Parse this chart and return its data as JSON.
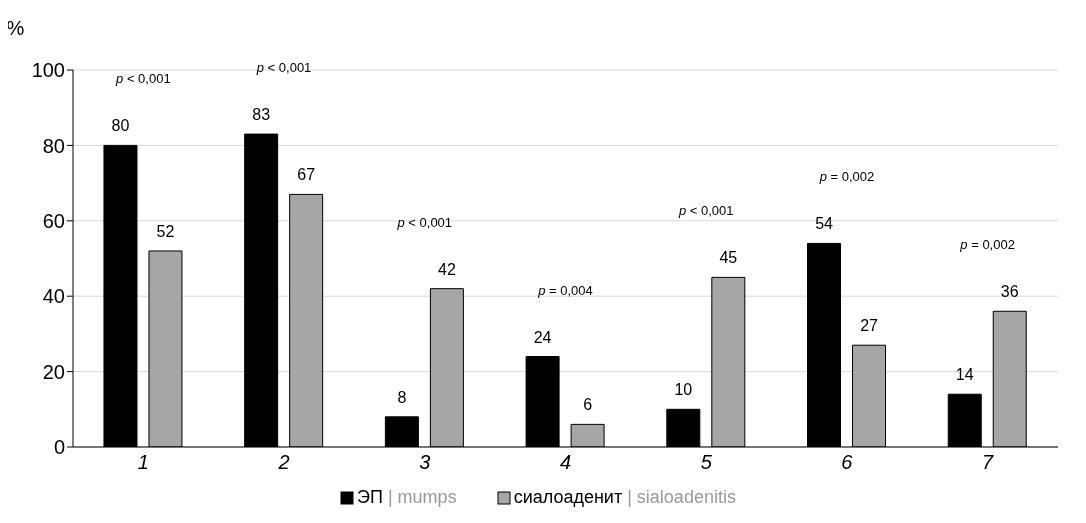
{
  "chart_data": {
    "type": "bar",
    "ylabel": "%",
    "categories": [
      "1",
      "2",
      "3",
      "4",
      "5",
      "6",
      "7"
    ],
    "series": [
      {
        "name": "ЭП | mumps",
        "color": "#000000",
        "values": [
          80,
          83,
          8,
          24,
          10,
          54,
          14
        ]
      },
      {
        "name": "сиалоаденит | sialoadenitis",
        "color": "#a6a6a6",
        "values": [
          52,
          67,
          42,
          6,
          45,
          27,
          36
        ]
      }
    ],
    "ylim": [
      0,
      100
    ],
    "yticks": [
      0,
      20,
      40,
      60,
      80,
      100
    ],
    "grid": "y",
    "legend": "bottom",
    "data_labels": true,
    "annotations": [
      "p < 0,001",
      "p < 0,001",
      "p < 0,001",
      "p = 0,004",
      "p < 0,001",
      "p = 0,002",
      "p = 0,002"
    ]
  }
}
